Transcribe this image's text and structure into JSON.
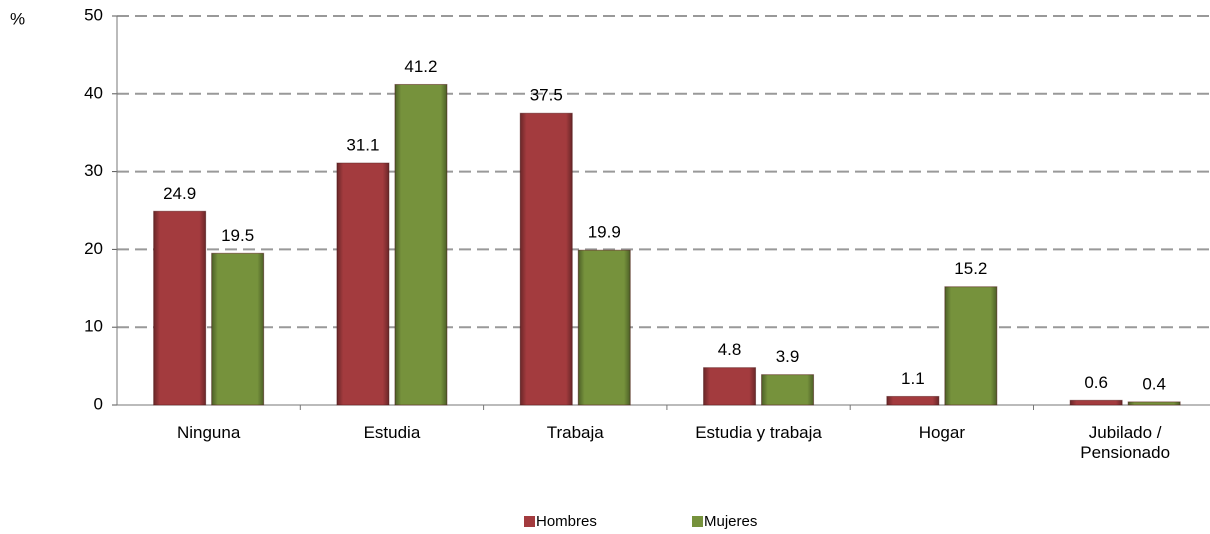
{
  "chart_data": {
    "type": "bar",
    "y_label": "%",
    "categories": [
      "Ninguna",
      "Estudia",
      "Trabaja",
      "Estudia y trabaja",
      "Hogar",
      "Jubilado /\nPensionado"
    ],
    "series": [
      {
        "name": "Hombres",
        "color": "#a33b3e",
        "values": [
          24.9,
          31.1,
          37.5,
          4.8,
          1.1,
          0.6
        ]
      },
      {
        "name": "Mujeres",
        "color": "#76923c",
        "values": [
          19.5,
          41.2,
          19.9,
          3.9,
          15.2,
          0.4
        ]
      }
    ],
    "ylim": [
      0,
      50
    ],
    "yticks": [
      0,
      10,
      20,
      30,
      40,
      50
    ],
    "grid": true,
    "legend": "bottom"
  }
}
